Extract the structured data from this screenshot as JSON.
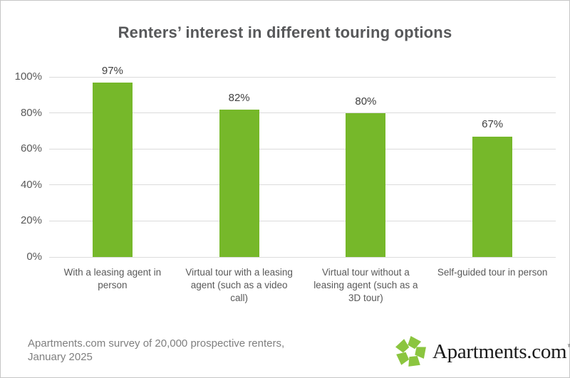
{
  "title": "Renters’ interest in different touring options",
  "chart_data": {
    "type": "bar",
    "title": "Renters’ interest in different touring options",
    "categories": [
      "With a leasing agent in person",
      "Virtual tour with a leasing agent (such as a video call)",
      "Virtual tour without a leasing agent (such as a 3D tour)",
      "Self-guided tour in person"
    ],
    "category_lines": [
      [
        "With a leasing agent in",
        "person"
      ],
      [
        "Virtual tour with a leasing",
        "agent (such as a video",
        "call)"
      ],
      [
        "Virtual tour without a",
        "leasing agent (such as a",
        "3D tour)"
      ],
      [
        "Self-guided tour in person"
      ]
    ],
    "values": [
      97,
      82,
      80,
      67
    ],
    "value_labels": [
      "97%",
      "82%",
      "80%",
      "67%"
    ],
    "xlabel": "",
    "ylabel": "",
    "ylim": [
      0,
      100
    ],
    "yticks": [
      {
        "value": 100,
        "label": "100%"
      },
      {
        "value": 80,
        "label": "80%"
      },
      {
        "value": 60,
        "label": "60%"
      },
      {
        "value": 40,
        "label": "40%"
      },
      {
        "value": 20,
        "label": "20%"
      },
      {
        "value": 0,
        "label": "0%"
      }
    ],
    "grid": "horizontal",
    "legend_position": "none",
    "bar_color": "#76b82a",
    "gridline_color": "#dbdbdb",
    "axis_text_color": "#595959",
    "value_label_color": "#404040",
    "title_color": "#57585a"
  },
  "footer": {
    "source_line1": "Apartments.com survey of 20,000 prospective renters,",
    "source_line2": "January 2025",
    "logo": {
      "icon": "apartments-pinwheel-icon",
      "wordmark": "Apartments.com",
      "trademark": "™",
      "icon_color": "#8bc53f",
      "wordmark_color": "#1a1a1a"
    }
  }
}
